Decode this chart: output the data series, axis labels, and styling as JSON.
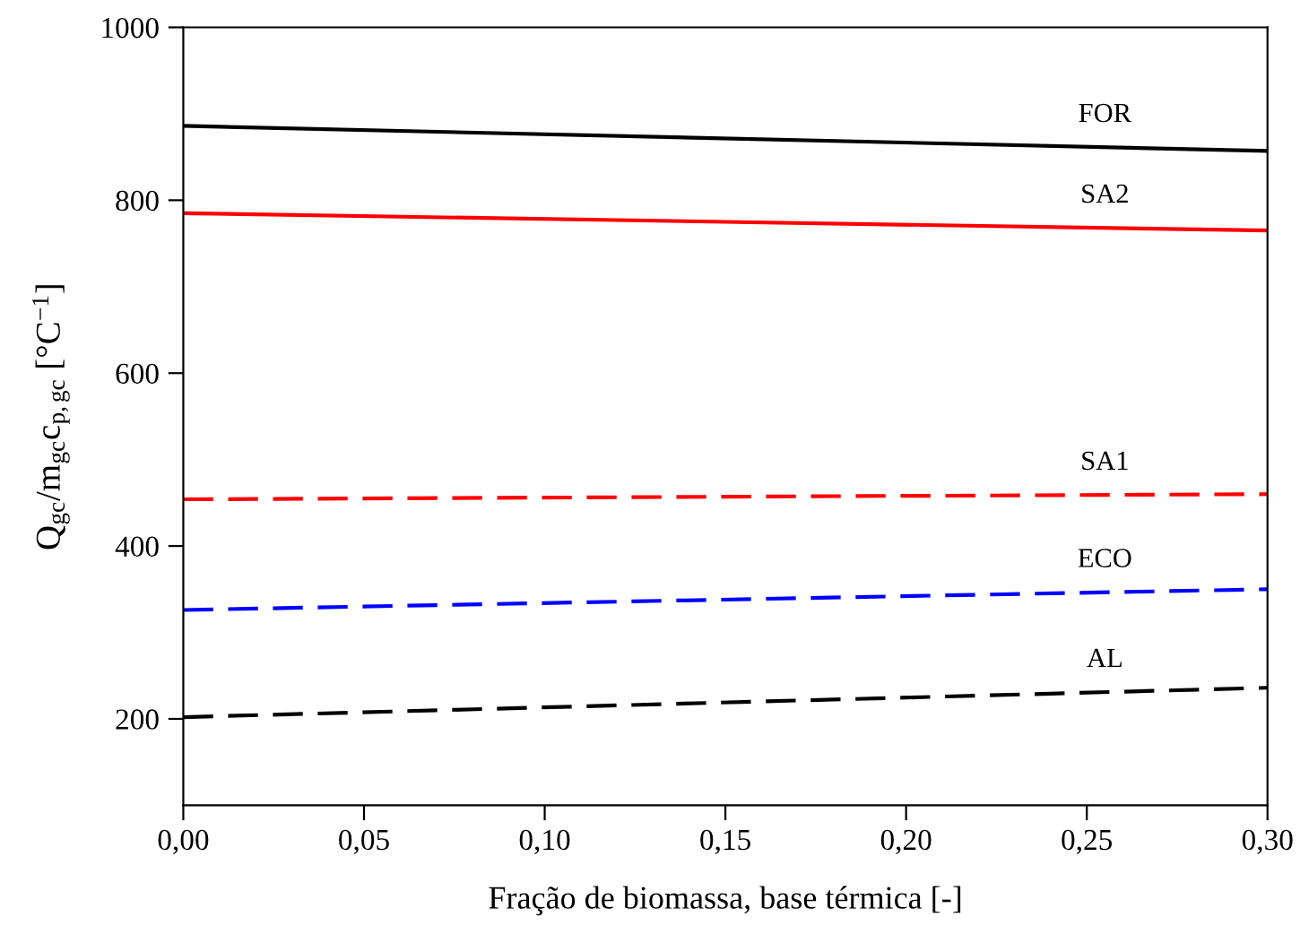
{
  "chart_data": {
    "type": "line",
    "xlabel": "Fração de biomassa, base térmica [-]",
    "ylabel": "Q$_{gc}$/m$_{gc}$c$_{p,gc}$ [°C$^{−1}$]",
    "x": [
      0,
      0.3
    ],
    "series": [
      {
        "name": "FOR",
        "color": "#000000",
        "line_style": "solid",
        "values": [
          886,
          857
        ]
      },
      {
        "name": "SA2",
        "color": "#ff0000",
        "line_style": "solid",
        "values": [
          785,
          765
        ]
      },
      {
        "name": "SA1",
        "color": "#ff0000",
        "line_style": "dashed",
        "values": [
          454,
          460
        ]
      },
      {
        "name": "ECO",
        "color": "#0000ff",
        "line_style": "dashed",
        "values": [
          326,
          350
        ]
      },
      {
        "name": "AL",
        "color": "#000000",
        "line_style": "dashed",
        "values": [
          202,
          236
        ]
      }
    ],
    "xlim": [
      0,
      0.3
    ],
    "xticks": [
      {
        "value": 0,
        "label": "0,00"
      },
      {
        "value": 0.05,
        "label": "0,05"
      },
      {
        "value": 0.1,
        "label": "0,10"
      },
      {
        "value": 0.15,
        "label": "0,15"
      },
      {
        "value": 0.2,
        "label": "0,20"
      },
      {
        "value": 0.25,
        "label": "0,25"
      },
      {
        "value": 0.3,
        "label": "0,30"
      }
    ],
    "ylim": [
      100,
      1000
    ],
    "yticks": [
      200,
      400,
      600,
      800,
      1000
    ],
    "grid": false,
    "legend": false,
    "marker": "none"
  }
}
